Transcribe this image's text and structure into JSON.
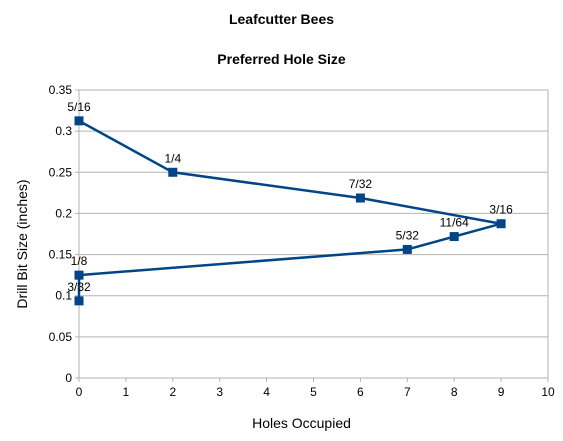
{
  "chart_data": {
    "type": "line",
    "title": "Leafcutter Bees",
    "subtitle": "Preferred Hole Size",
    "xlabel": "Holes Occupied",
    "ylabel": "Drill Bit Size (inches)",
    "xlim": [
      0,
      10
    ],
    "ylim": [
      0,
      0.35
    ],
    "x_ticks": [
      "0",
      "1",
      "2",
      "3",
      "4",
      "5",
      "6",
      "7",
      "8",
      "9",
      "10"
    ],
    "y_ticks": [
      "0",
      "0.05",
      "0.1",
      "0.15",
      "0.2",
      "0.25",
      "0.3",
      "0.35"
    ],
    "grid": "horizontal",
    "legend": "none",
    "series": [
      {
        "color": "#004586",
        "points": [
          {
            "x": 0,
            "y": 0.09375,
            "label": "3/32"
          },
          {
            "x": 0,
            "y": 0.125,
            "label": "1/8"
          },
          {
            "x": 7,
            "y": 0.15625,
            "label": "5/32"
          },
          {
            "x": 8,
            "y": 0.171875,
            "label": "11/64"
          },
          {
            "x": 9,
            "y": 0.1875,
            "label": "3/16"
          },
          {
            "x": 6,
            "y": 0.21875,
            "label": "7/32"
          },
          {
            "x": 2,
            "y": 0.25,
            "label": "1/4"
          },
          {
            "x": 0,
            "y": 0.3125,
            "label": "5/16"
          }
        ]
      }
    ]
  }
}
